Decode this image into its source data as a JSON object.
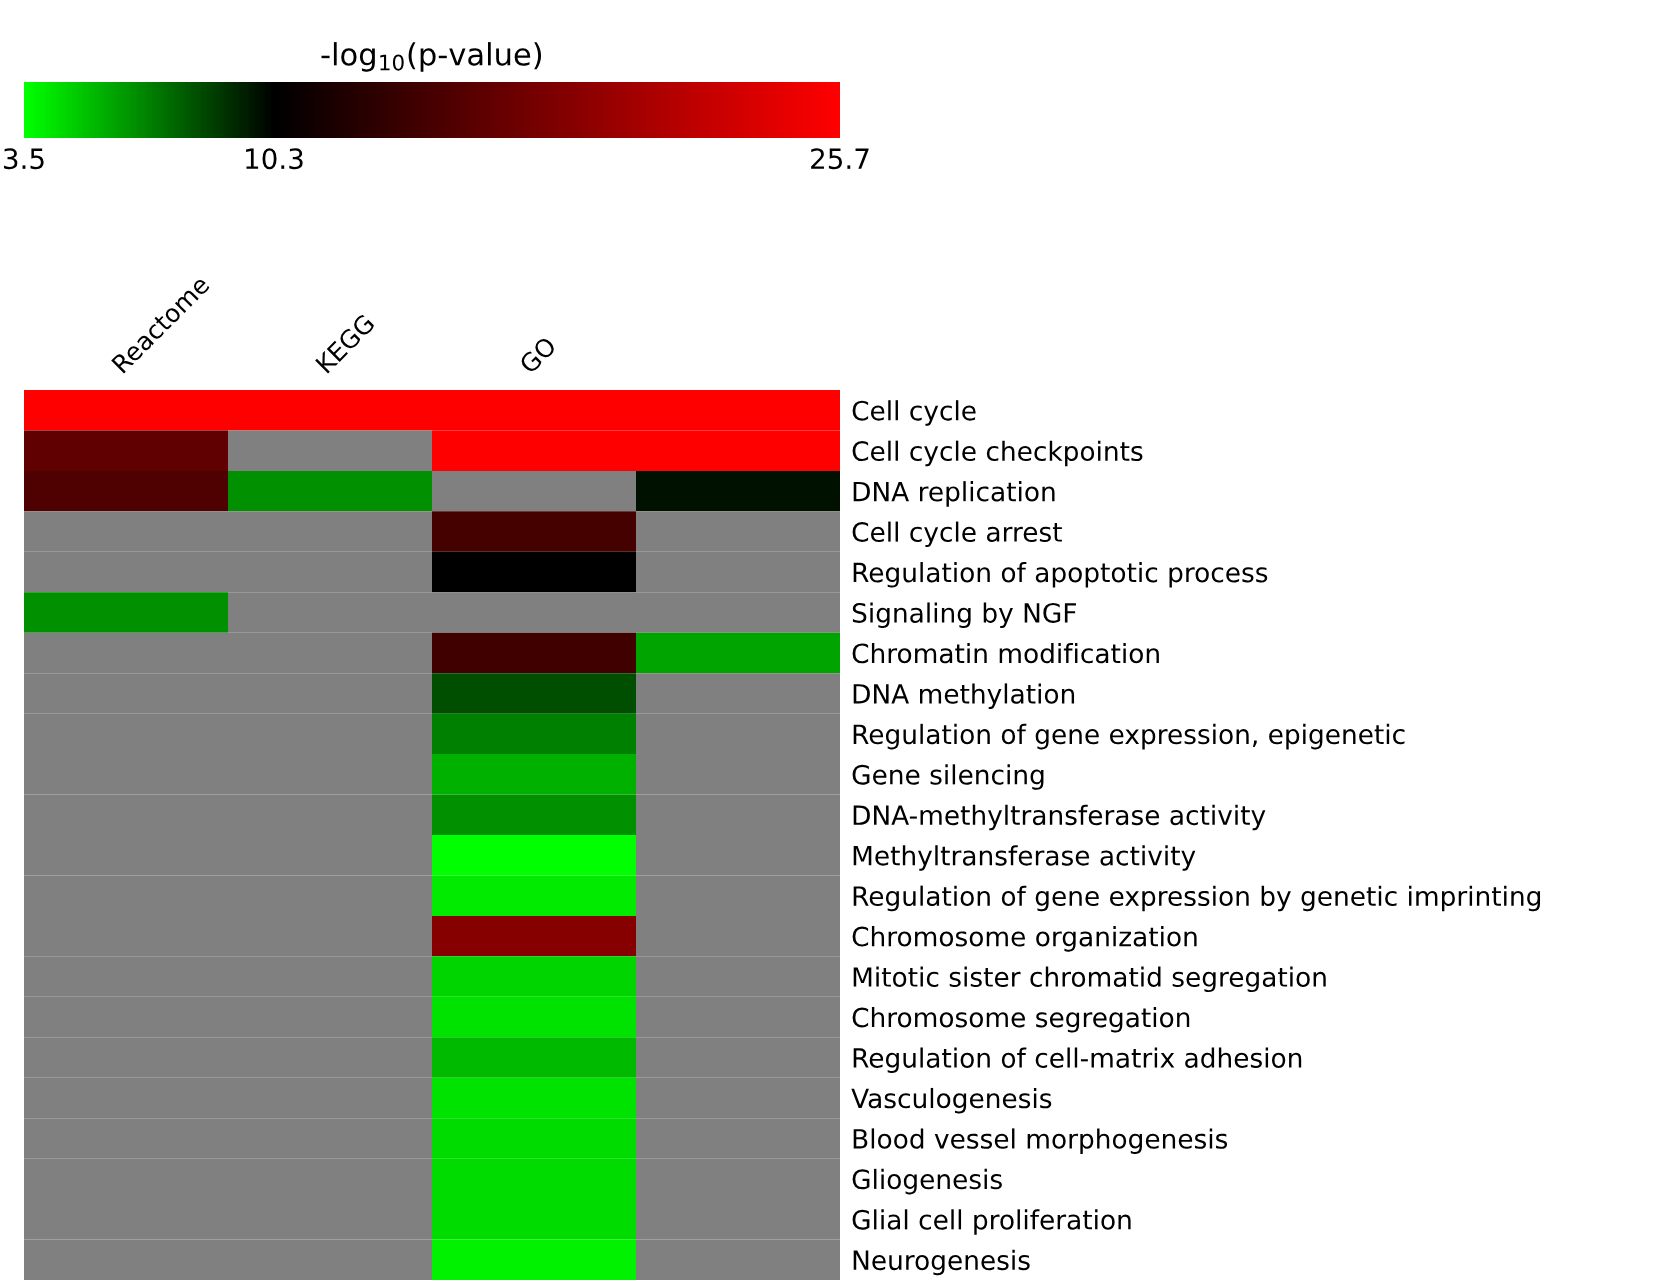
{
  "chart_data": {
    "type": "heatmap",
    "clabel": "-log$_{10}$(p-value)",
    "categories": [
      "Reactome",
      "KEGG",
      "GO",
      null
    ],
    "y_categories": [
      "Cell cycle",
      "Cell cycle checkpoints",
      "DNA replication",
      "Cell cycle arrest",
      "Regulation of apoptotic process",
      "Signaling by NGF",
      "Chromatin modification",
      "DNA methylation",
      "Regulation of gene expression, epigenetic",
      "Gene silencing",
      "DNA-methyltransferase activity",
      "Methyltransferase activity",
      "Regulation of gene expression by genetic imprinting",
      "Chromosome organization",
      "Mitotic sister chromatid segregation",
      "Chromosome segregation",
      "Regulation of cell-matrix adhesion",
      "Vasculogenesis",
      "Blood vessel morphogenesis",
      "Gliogenesis",
      "Glial cell proliferation",
      "Neurogenesis"
    ],
    "cells": [
      [
        25.7,
        25.7,
        25.7,
        25.7
      ],
      [
        16.1,
        null,
        25.7,
        25.7
      ],
      [
        15.1,
        6.5,
        null,
        9.9
      ],
      [
        null,
        null,
        14.5,
        null
      ],
      [
        null,
        null,
        10.3,
        null
      ],
      [
        6.5,
        null,
        null,
        null
      ],
      [
        null,
        null,
        14.2,
        6.0
      ],
      [
        null,
        null,
        8.2,
        null
      ],
      [
        null,
        null,
        6.9,
        null
      ],
      [
        null,
        null,
        5.6,
        null
      ],
      [
        null,
        null,
        6.5,
        null
      ],
      [
        null,
        null,
        3.5,
        null
      ],
      [
        null,
        null,
        4.1,
        null
      ],
      [
        null,
        null,
        18.5,
        null
      ],
      [
        null,
        null,
        4.7,
        null
      ],
      [
        null,
        null,
        4.3,
        null
      ],
      [
        null,
        null,
        5.4,
        null
      ],
      [
        null,
        null,
        4.3,
        null
      ],
      [
        null,
        null,
        4.5,
        null
      ],
      [
        null,
        null,
        4.5,
        null
      ],
      [
        null,
        null,
        4.5,
        null
      ],
      [
        null,
        null,
        3.9,
        null
      ]
    ],
    "clim": [
      3.5,
      25.7
    ],
    "cticks": [
      3.5,
      10.3,
      25.7
    ],
    "colors": [
      "#00ff00",
      "#000000",
      "#ff0000"
    ]
  }
}
